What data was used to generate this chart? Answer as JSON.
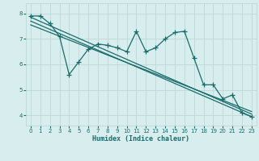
{
  "xlabel": "Humidex (Indice chaleur)",
  "xlim": [
    -0.5,
    23.5
  ],
  "ylim": [
    3.6,
    8.4
  ],
  "xticks": [
    0,
    1,
    2,
    3,
    4,
    5,
    6,
    7,
    8,
    9,
    10,
    11,
    12,
    13,
    14,
    15,
    16,
    17,
    18,
    19,
    20,
    21,
    22,
    23
  ],
  "yticks": [
    4,
    5,
    6,
    7,
    8
  ],
  "bg_color": "#d8eeee",
  "grid_color": "#b8d4d4",
  "line_color": "#1a6b6b",
  "line_width": 0.9,
  "marker_size": 4,
  "data_x": [
    0,
    1,
    2,
    3,
    4,
    5,
    6,
    7,
    8,
    9,
    10,
    11,
    12,
    13,
    14,
    15,
    16,
    17,
    18,
    19,
    20,
    21,
    22,
    23
  ],
  "data_y": [
    7.9,
    7.9,
    7.6,
    7.1,
    5.6,
    6.1,
    6.6,
    6.8,
    6.75,
    6.65,
    6.5,
    7.3,
    6.5,
    6.65,
    7.0,
    7.25,
    7.3,
    6.25,
    5.2,
    5.2,
    4.65,
    4.8,
    4.1,
    3.95
  ],
  "trend1_x": [
    0,
    23
  ],
  "trend1_y": [
    7.85,
    4.05
  ],
  "trend2_x": [
    0,
    23
  ],
  "trend2_y": [
    7.7,
    3.95
  ],
  "trend3_x": [
    0,
    23
  ],
  "trend3_y": [
    7.55,
    4.15
  ]
}
